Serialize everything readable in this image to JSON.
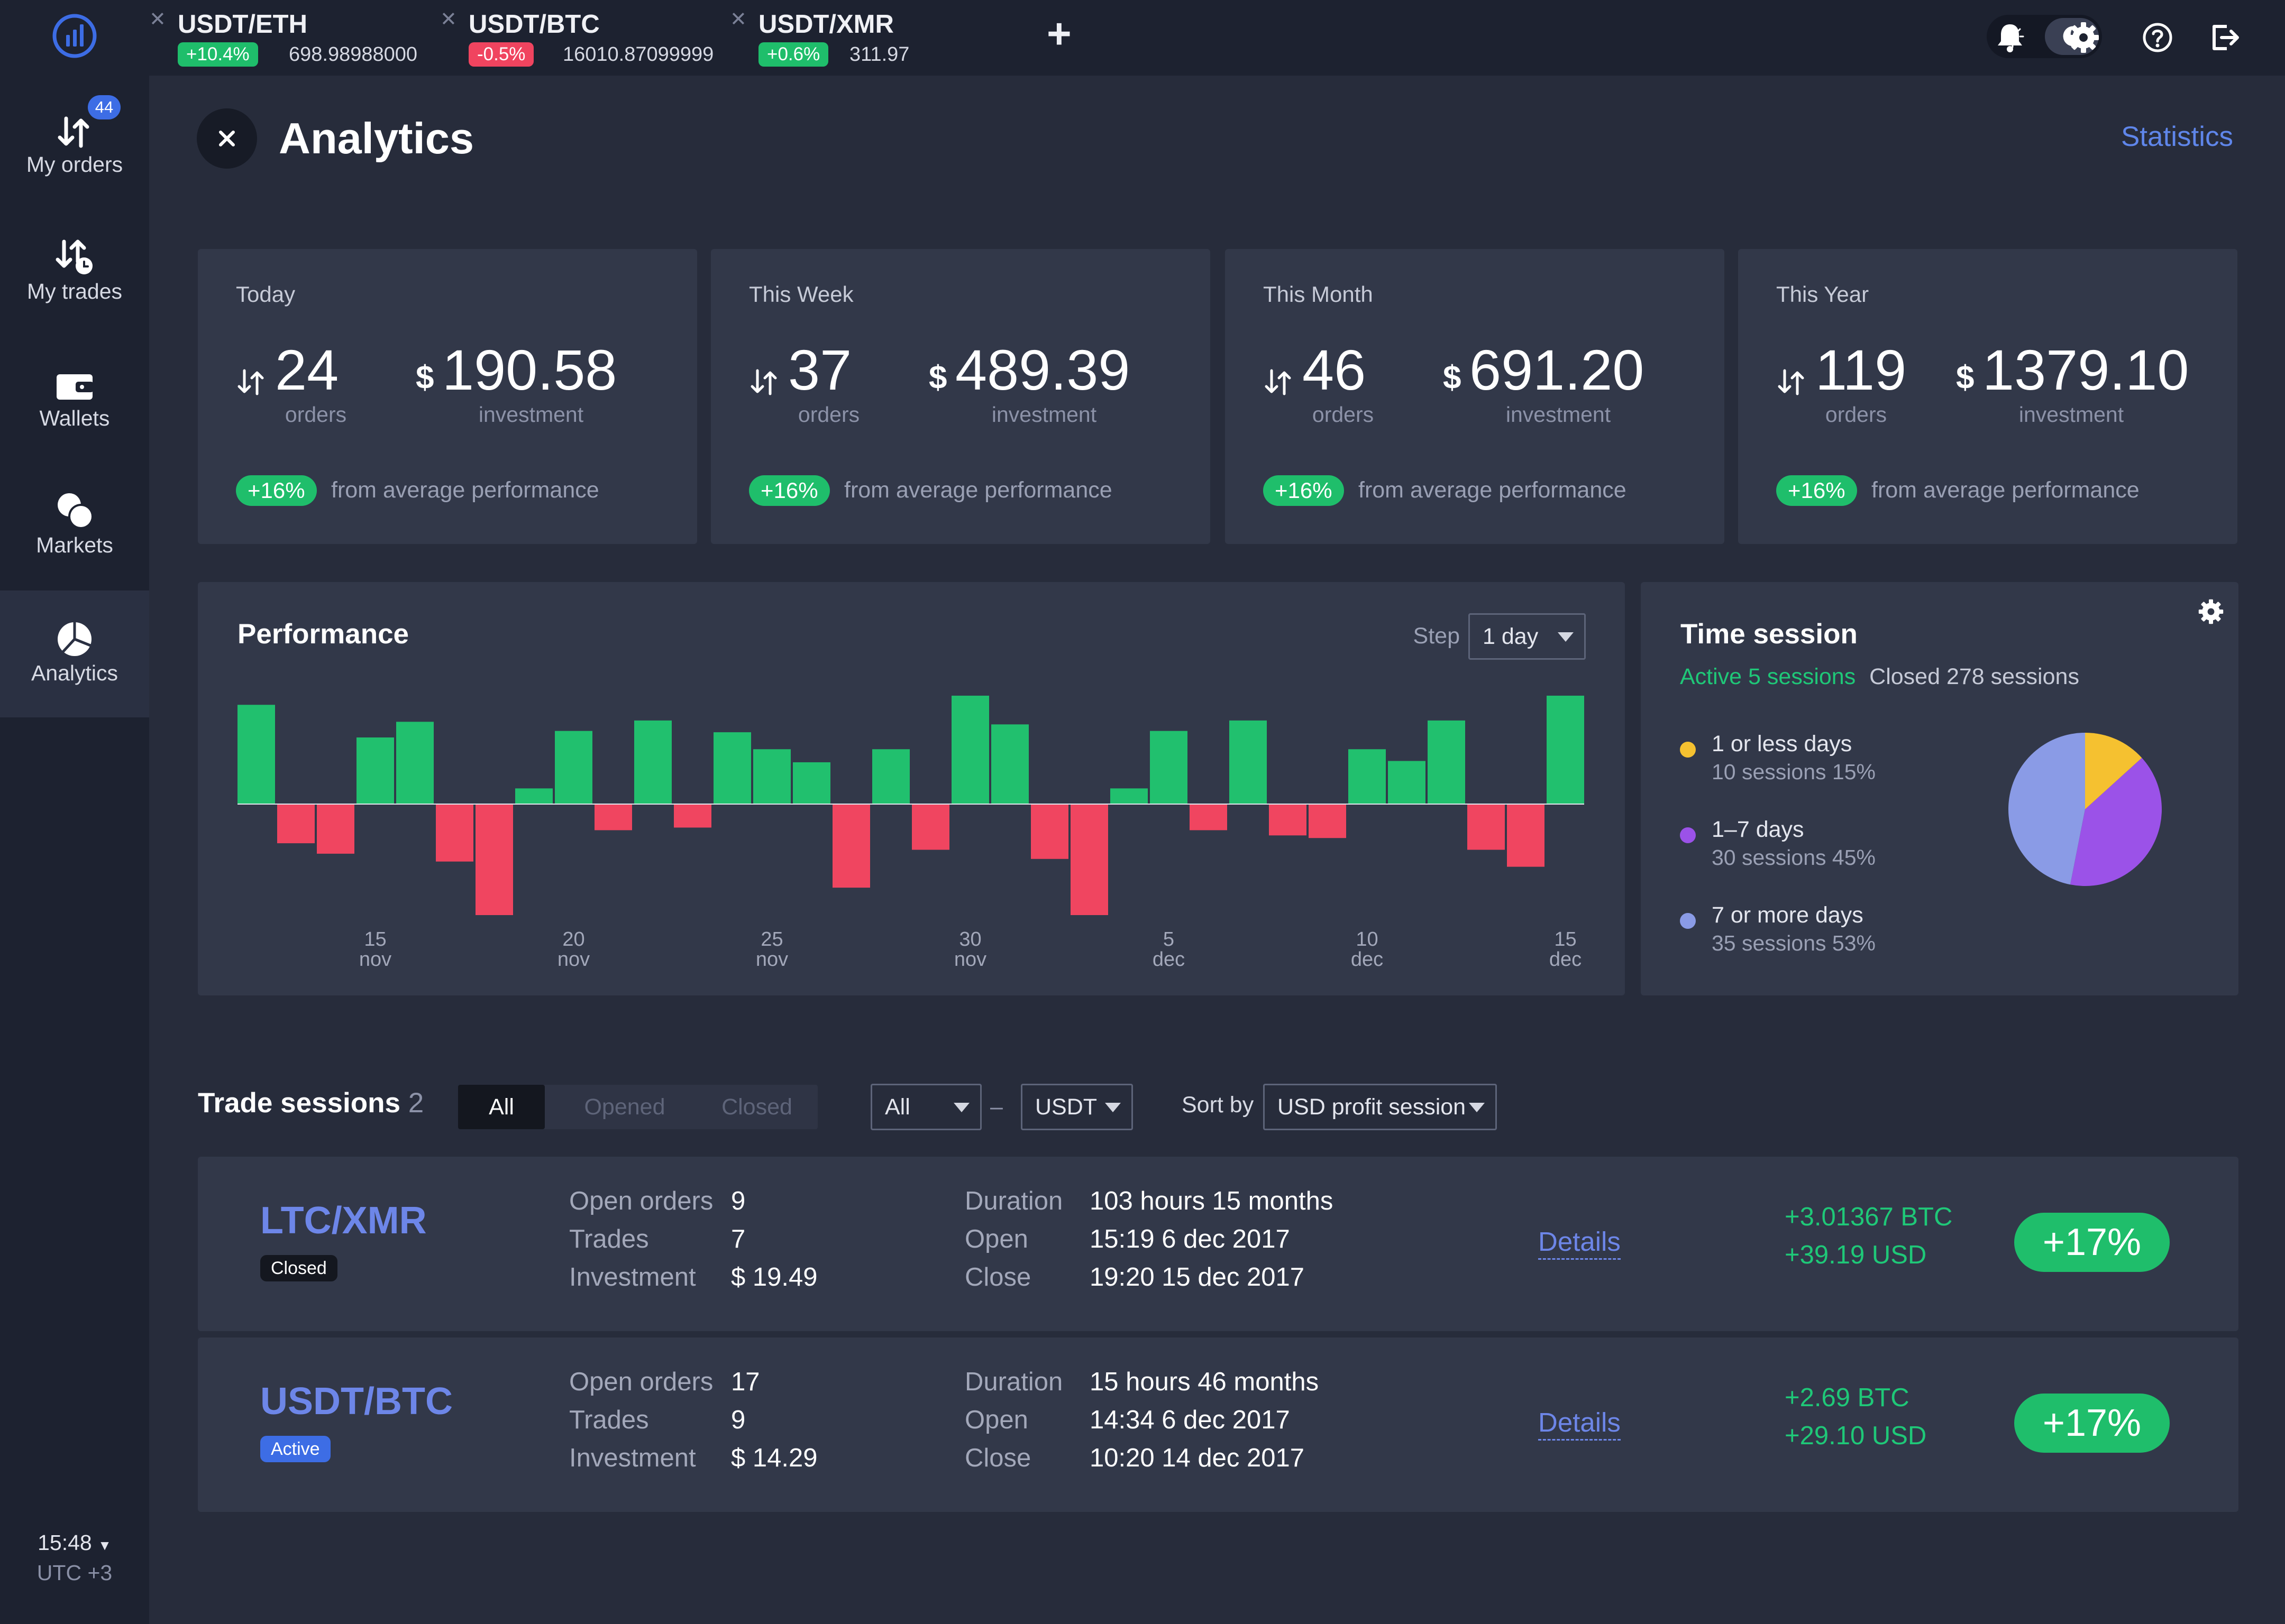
{
  "tickers": [
    {
      "pair": "USDT/ETH",
      "change": "+10.4%",
      "change_color": "#1fbe6b",
      "price": "698.98988000"
    },
    {
      "pair": "USDT/BTC",
      "change": "-0.5%",
      "change_color": "#f0445f",
      "price": "16010.87099999"
    },
    {
      "pair": "USDT/XMR",
      "change": "+0.6%",
      "change_color": "#1fbe6b",
      "price": "311.97"
    }
  ],
  "sidebar": {
    "items": [
      {
        "label": "My orders",
        "badge": "44"
      },
      {
        "label": "My trades"
      },
      {
        "label": "Wallets"
      },
      {
        "label": "Markets"
      },
      {
        "label": "Analytics",
        "active": true
      }
    ],
    "clock": {
      "time": "15:48",
      "tz": "UTC +3"
    }
  },
  "header": {
    "title": "Analytics",
    "statistics_link": "Statistics"
  },
  "cards": [
    {
      "label": "Today",
      "orders": "24",
      "orders_label": "orders",
      "currency": "$",
      "investment": "190.58",
      "investment_label": "investment",
      "badge": "+16%",
      "note": "from average performance"
    },
    {
      "label": "This Week",
      "orders": "37",
      "orders_label": "orders",
      "currency": "$",
      "investment": "489.39",
      "investment_label": "investment",
      "badge": "+16%",
      "note": "from average performance"
    },
    {
      "label": "This Month",
      "orders": "46",
      "orders_label": "orders",
      "currency": "$",
      "investment": "691.20",
      "investment_label": "investment",
      "badge": "+16%",
      "note": "from average performance"
    },
    {
      "label": "This Year",
      "orders": "119",
      "orders_label": "orders",
      "currency": "$",
      "investment": "1379.10",
      "investment_label": "investment",
      "badge": "+16%",
      "note": "from average performance"
    }
  ],
  "performance": {
    "title": "Performance",
    "step_label": "Step",
    "step_value": "1 day"
  },
  "chart_data": [
    {
      "type": "bar",
      "title": "Performance",
      "positive_color": "#21c06e",
      "negative_color": "#f04560",
      "ylim": [
        -85,
        85
      ],
      "values": [
        76,
        -30,
        -38,
        51,
        63,
        -44,
        -85,
        12,
        56,
        -20,
        64,
        -18,
        55,
        42,
        32,
        -64,
        42,
        -35,
        83,
        61,
        -42,
        -85,
        12,
        56,
        -20,
        64,
        -24,
        -26,
        42,
        33,
        64,
        -35,
        -48,
        83
      ],
      "x_ticks": [
        {
          "index": 3,
          "day": "15",
          "month": "nov"
        },
        {
          "index": 8,
          "day": "20",
          "month": "nov"
        },
        {
          "index": 13,
          "day": "25",
          "month": "nov"
        },
        {
          "index": 18,
          "day": "30",
          "month": "nov"
        },
        {
          "index": 23,
          "day": "5",
          "month": "dec"
        },
        {
          "index": 28,
          "day": "10",
          "month": "dec"
        },
        {
          "index": 33,
          "day": "15",
          "month": "dec"
        }
      ]
    },
    {
      "type": "pie",
      "title": "Time session",
      "slices": [
        {
          "name": "1 or less days",
          "sessions": 10,
          "percent": 15,
          "color": "#f5c130"
        },
        {
          "name": "1–7 days",
          "sessions": 30,
          "percent": 45,
          "color": "#9b52e8"
        },
        {
          "name": "7 or more days",
          "sessions": 35,
          "percent": 53,
          "color": "#8a9be6"
        }
      ]
    }
  ],
  "time_session": {
    "title": "Time session",
    "active": "Active 5 sessions",
    "closed": "Closed 278 sessions",
    "active_color": "#1fc878",
    "legend": [
      {
        "name": "1 or less days",
        "detail": "10 sessions  15%",
        "color": "#f5c130"
      },
      {
        "name": "1–7 days",
        "detail": "30 sessions  45%",
        "color": "#9b52e8"
      },
      {
        "name": "7 or more days",
        "detail": "35 sessions  53%",
        "color": "#8a9be6"
      }
    ]
  },
  "trade_sessions": {
    "title": "Trade sessions",
    "count": "2",
    "tabs": [
      "All",
      "Opened",
      "Closed"
    ],
    "filter_type": "All",
    "filter_currency": "USDT",
    "filter_dash": "–",
    "sort_label": "Sort by",
    "sort_value": "USD profit session",
    "rows": [
      {
        "pair": "LTC/XMR",
        "status": "Closed",
        "status_color": "#14171f",
        "open_orders_label": "Open orders",
        "open_orders": "9",
        "trades_label": "Trades",
        "trades": "7",
        "investment_label": "Investment",
        "investment": "$ 19.49",
        "duration_label": "Duration",
        "duration": "103 hours 15 months",
        "open_label": "Open",
        "open": "15:19  6 dec 2017",
        "close_label": "Close",
        "close": "19:20  15 dec 2017",
        "details": "Details",
        "profit_btc": "+3.01367 BTC",
        "profit_usd": "+39.19 USD",
        "profit_pct": "+17%"
      },
      {
        "pair": "USDT/BTC",
        "status": "Active",
        "status_color": "#3d6de5",
        "open_orders_label": "Open orders",
        "open_orders": "17",
        "trades_label": "Trades",
        "trades": "9",
        "investment_label": "Investment",
        "investment": "$ 14.29",
        "duration_label": "Duration",
        "duration": "15 hours 46 months",
        "open_label": "Open",
        "open": "14:34  6 dec 2017",
        "close_label": "Close",
        "close": "10:20  14 dec 2017",
        "details": "Details",
        "profit_btc": "+2.69 BTC",
        "profit_usd": "+29.10 USD",
        "profit_pct": "+17%"
      }
    ]
  }
}
